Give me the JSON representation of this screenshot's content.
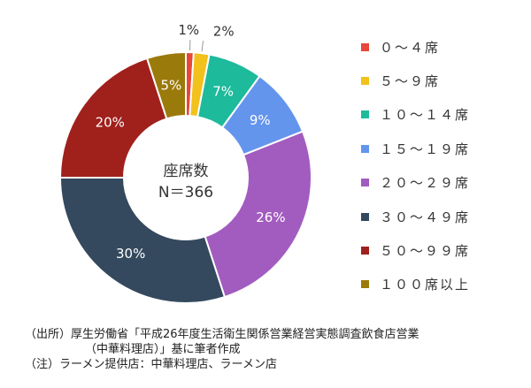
{
  "chart_data": {
    "type": "donut",
    "center_text": [
      "座席数",
      "N＝366"
    ],
    "series": [
      {
        "category": "０～４席",
        "value": 1,
        "label": "1%",
        "color": "#e8463a"
      },
      {
        "category": "５～９席",
        "value": 2,
        "label": "2%",
        "color": "#f2c11c"
      },
      {
        "category": "１０～１４席",
        "value": 7,
        "label": "7%",
        "color": "#1dba9b"
      },
      {
        "category": "１５～１９席",
        "value": 9,
        "label": "9%",
        "color": "#6495ed"
      },
      {
        "category": "２０～２９席",
        "value": 26,
        "label": "26%",
        "color": "#a25cbf"
      },
      {
        "category": "３０～４９席",
        "value": 30,
        "label": "30%",
        "color": "#34495e"
      },
      {
        "category": "５０～９９席",
        "value": 20,
        "label": "20%",
        "color": "#a0201c"
      },
      {
        "category": "１００席以上",
        "value": 5,
        "label": "5%",
        "color": "#9a7a0a"
      }
    ],
    "legend_position": "right"
  },
  "footnotes": {
    "source_line1": "（出所）厚生労働省「平成26年度生活衛生関係営業経営実態調査飲食店営業",
    "source_line2": "（中華料理店）」基に筆者作成",
    "note": "（注）ラーメン提供店：中華料理店、ラーメン店"
  }
}
